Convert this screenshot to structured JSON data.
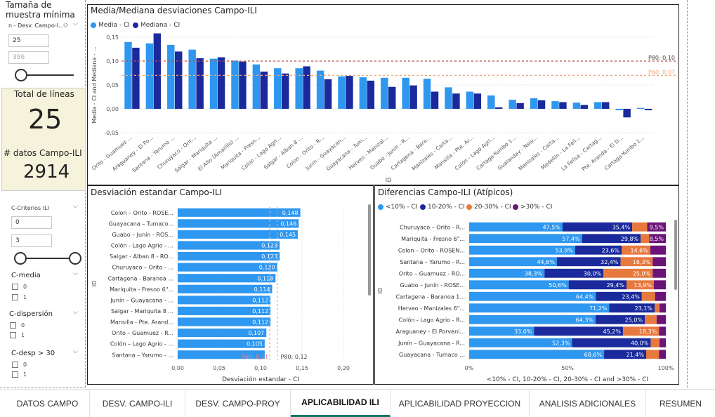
{
  "left_panel": {
    "sample_title": "Tamaña de muestra mínima",
    "sample_filter_label": "n - Desv. Campo-I...",
    "sample_min": "25",
    "sample_max": "386",
    "total_lines_label": "Total de líneas",
    "total_lines_value": "25",
    "datos_label": "# datos Campo-ILI",
    "datos_value": "2914",
    "criterios_label": "C-Criterios ILI",
    "criterios_min": "0",
    "criterios_max": "3",
    "cmedia_label": "C-media",
    "cmedia_opts": [
      "0",
      "1"
    ],
    "cdisp_label": "C-dispersión",
    "cdisp_opts": [
      "0",
      "1"
    ],
    "cdesp_label": "C-desp > 30",
    "cdesp_opts": [
      "0",
      "1"
    ]
  },
  "colors": {
    "light_blue": "#2e97f0",
    "dark_blue": "#1a2a9c",
    "orange": "#e8793e",
    "purple": "#6b1478",
    "ref_dark": "#c0504d",
    "ref_light": "#f0a878",
    "card_bg": "#f6f3dc"
  },
  "chart_data": [
    {
      "type": "bar",
      "title": "Media/Mediana desviaciones Campo-ILI",
      "xlabel": "ID",
      "ylabel": "Media - CI and Mediana - ...",
      "legend": [
        "Media - CI",
        "Mediana - CI"
      ],
      "ylim": [
        -0.05,
        0.15
      ],
      "yticks": [
        "0,15",
        "0,10",
        "0,05",
        "0,00",
        "-0,05"
      ],
      "categories": [
        "Orito - Guamuez ...",
        "Araguaney - El Po...",
        "Santana - Yarumo ...",
        "Churuyaco - Orit...",
        "Salgar - Mariquita ...",
        "El Alto (Amarillo) ...",
        "Mariquita - Fresn...",
        "Colon - Lago Agri...",
        "Salgar - Alban 8 ...",
        "Colon - Orito - R...",
        "Junin - Guayacan...",
        "Guayacana - Tum...",
        "Herveo - Manizal...",
        "Guabo - Junin - R...",
        "Cartagena - Bara...",
        "Manizales - Carta...",
        "Mansilla - Pte. Ar...",
        "Colón - Lago Agri...",
        "Cartago-Yumbo 1...",
        "Gualanday - Neiv...",
        "Manizales - Carta...",
        "Medellin - La Feli...",
        "La Felisa - Cartag...",
        "Pte. Aranda - El D...",
        "Cartago-Yumbo 1..."
      ],
      "series": [
        {
          "name": "Media - CI",
          "values": [
            0.14,
            0.137,
            0.134,
            0.124,
            0.105,
            0.101,
            0.093,
            0.085,
            0.085,
            0.08,
            0.068,
            0.066,
            0.065,
            0.065,
            0.063,
            0.045,
            0.036,
            0.028,
            0.019,
            0.022,
            0.016,
            0.013,
            0.014,
            -0.003,
            0.002
          ]
        },
        {
          "name": "Mediana - CI",
          "values": [
            0.128,
            0.158,
            0.12,
            0.106,
            0.108,
            0.099,
            0.078,
            0.074,
            0.089,
            0.062,
            0.069,
            0.059,
            0.046,
            0.049,
            0.036,
            0.032,
            0.032,
            0.003,
            0.012,
            0.018,
            0.014,
            0.008,
            0.014,
            -0.018,
            -0.003
          ]
        }
      ],
      "ref_lines": [
        {
          "label": "P80: 0,10",
          "value": 0.1
        },
        {
          "label": "P60: 0,07",
          "value": 0.07
        }
      ]
    },
    {
      "type": "bar",
      "title": "Desviación estandar Campo-ILI",
      "xlabel": "Desviación estandar - CI",
      "ylabel": "ID",
      "xlim": [
        0,
        0.2
      ],
      "xticks": [
        "0,00",
        "0,05",
        "0,10",
        "0,15",
        "0,20"
      ],
      "categories": [
        "Colon – Orito - ROSE...",
        "Guayacana – Tumaco...",
        "Guabo – Junín - ROS...",
        "Colón - Lago Agrio - ...",
        "Salgar - Alban 8 - RO...",
        "Churuyaco – Orito - ...",
        "Cartagena - Baranoa ...",
        "Mariquita - Fresno 6\"...",
        "Junín – Guayacana - ...",
        "Salgar - Mariquita 8 ...",
        "Mansilla - Pte. Arand...",
        "Orito – Guamuez - R...",
        "Colón – Lago Agrio - ...",
        "Santana – Yarumo - ..."
      ],
      "values": [
        0.148,
        0.146,
        0.145,
        0.123,
        0.123,
        0.12,
        0.118,
        0.114,
        0.112,
        0.112,
        0.112,
        0.107,
        0.105,
        0.105
      ],
      "labels": [
        "0,148",
        "0,146",
        "0,145",
        "0,123",
        "0,123",
        "0,120",
        "0,118",
        "0,114",
        "0,112",
        "0,112",
        "0,112",
        "0,107",
        "0,105",
        ""
      ],
      "ref_lines": [
        {
          "label": "P80: 0,12",
          "value": 0.12
        },
        {
          "label": "P60: 0,11",
          "value": 0.111
        }
      ]
    },
    {
      "type": "bar",
      "title": "Diferencias Campo-ILI (Atípicos)",
      "xlabel": "<10% - CI, 10-20% - CI, 20-30% - CI and >30% - CI",
      "ylabel": "ID",
      "xticks": [
        "0%",
        "50%",
        "100%"
      ],
      "legend": [
        "<10% - CI",
        "10-20% - CI",
        "20-30% - CI",
        ">30% - CI"
      ],
      "categories": [
        "Churuyaco – Orito - R...",
        "Mariquita - Fresno 6\"...",
        "Colon – Orito - ROSEN...",
        "Santana – Yarumo - R...",
        "Orito – Guamuez - RO...",
        "Guabo – Junín - ROSE...",
        "Cartagena - Baranoa 1...",
        "Herveo - Manizales 6\"...",
        "Colón - Lago Agrio - R...",
        "Araguaney - El Porveni...",
        "Junín – Guayacana - R...",
        "Guayacana - Tumaco ..."
      ],
      "series": [
        {
          "name": "<10% - CI",
          "values": [
            47.5,
            57.4,
            53.9,
            44.6,
            38.3,
            50.6,
            64.4,
            71.2,
            64.3,
            33.0,
            52.3,
            68.6
          ]
        },
        {
          "name": "10-20% - CI",
          "values": [
            35.4,
            29.8,
            23.6,
            32.4,
            30.0,
            29.4,
            23.4,
            23.1,
            25.0,
            45.2,
            40.0,
            21.4
          ]
        },
        {
          "name": "20-30% - CI",
          "values": [
            7.6,
            4.3,
            14.6,
            16.3,
            25.0,
            13.9,
            6.7,
            2.5,
            6.0,
            18.3,
            4.5,
            6.5
          ]
        },
        {
          "name": ">30% - CI",
          "values": [
            9.5,
            8.5,
            7.9,
            6.7,
            6.7,
            6.1,
            5.5,
            3.2,
            4.7,
            3.5,
            3.2,
            3.5
          ]
        }
      ],
      "label_matrix": [
        [
          "47,5%",
          "35,4%",
          "",
          "9,5%"
        ],
        [
          "57,4%",
          "29,8%",
          "",
          "8,5%"
        ],
        [
          "53,9%",
          "23,6%",
          "14,6%",
          ""
        ],
        [
          "44,6%",
          "32,4%",
          "16,3%",
          ""
        ],
        [
          "38,3%",
          "30,0%",
          "25,0%",
          ""
        ],
        [
          "50,6%",
          "29,4%",
          "13,9%",
          ""
        ],
        [
          "64,4%",
          "23,4%",
          "",
          ""
        ],
        [
          "71,2%",
          "23,1%",
          "",
          ""
        ],
        [
          "64,3%",
          "25,0%",
          "",
          ""
        ],
        [
          "33,0%",
          "45,2%",
          "18,3%",
          ""
        ],
        [
          "52,3%",
          "40,0%",
          "",
          ""
        ],
        [
          "68,6%",
          "21,4%",
          "",
          ""
        ]
      ]
    }
  ],
  "tabs": [
    "DATOS CAMPO",
    "DESV. CAMPO-ILI",
    "DESV. CAMPO-PROY",
    "APLICABILIDAD ILI",
    "APLICABILIDAD PROYECCION",
    "ANALISIS ADICIONALES",
    "RESUMEN"
  ],
  "active_tab": "APLICABILIDAD ILI"
}
